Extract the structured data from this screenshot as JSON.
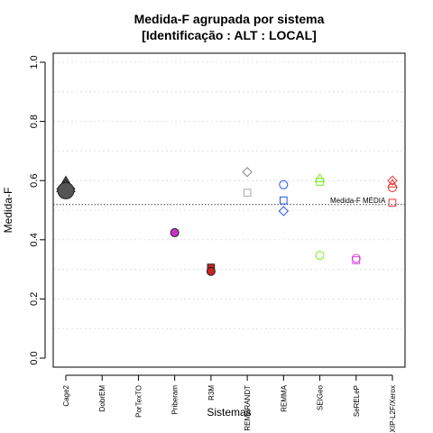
{
  "chart_data": {
    "type": "scatter",
    "title_line1": "Medida-F agrupada por sistema",
    "title_line2": "[Identificação : ALT : LOCAL]",
    "xlabel": "Sistemas",
    "ylabel": "Medida-F",
    "ylim": [
      0,
      1
    ],
    "yticks": [
      "0.0",
      "0.2",
      "0.4",
      "0.6",
      "0.8",
      "1.0"
    ],
    "grid": true,
    "categories": [
      "Cage2",
      "DobrEM",
      "PorTexTO",
      "Priberam",
      "R3M",
      "REMBRANDT",
      "REMMA",
      "SEIGeo",
      "SeRELeP",
      "XIP-L2F/Xerox"
    ],
    "reference_line": {
      "label": "Medida-F MÉDIA",
      "value": 0.519
    },
    "points": [
      {
        "category": "Cage2",
        "value": 0.584,
        "shape": "triangle",
        "color": "#555555",
        "filled": true,
        "big": true
      },
      {
        "category": "Cage2",
        "value": 0.572,
        "shape": "diamond",
        "color": "#555555",
        "filled": true,
        "big": true
      },
      {
        "category": "Cage2",
        "value": 0.566,
        "shape": "circle",
        "color": "#555555",
        "filled": true,
        "big": true
      },
      {
        "category": "Priberam",
        "value": 0.424,
        "shape": "circle",
        "color": "#cc33cc",
        "filled": true
      },
      {
        "category": "R3M",
        "value": 0.306,
        "shape": "square",
        "color": "#cc2222",
        "filled": true
      },
      {
        "category": "R3M",
        "value": 0.293,
        "shape": "circle",
        "color": "#cc2222",
        "filled": true
      },
      {
        "category": "REMBRANDT",
        "value": 0.629,
        "shape": "diamond",
        "color": "#888888",
        "filled": false
      },
      {
        "category": "REMBRANDT",
        "value": 0.559,
        "shape": "square",
        "color": "#aaaaaa",
        "filled": false
      },
      {
        "category": "REMMA",
        "value": 0.586,
        "shape": "circle",
        "color": "#2255ee",
        "filled": false
      },
      {
        "category": "REMMA",
        "value": 0.533,
        "shape": "square",
        "color": "#2255ee",
        "filled": false
      },
      {
        "category": "REMMA",
        "value": 0.497,
        "shape": "diamond",
        "color": "#2255ee",
        "filled": false
      },
      {
        "category": "SEIGeo",
        "value": 0.607,
        "shape": "triangle",
        "color": "#77ee22",
        "filled": false
      },
      {
        "category": "SEIGeo",
        "value": 0.596,
        "shape": "square",
        "color": "#77ee22",
        "filled": false
      },
      {
        "category": "SEIGeo",
        "value": 0.347,
        "shape": "circle",
        "color": "#77ee22",
        "filled": false
      },
      {
        "category": "SeRELeP",
        "value": 0.337,
        "shape": "circle",
        "color": "#dd44dd",
        "filled": false
      },
      {
        "category": "SeRELeP",
        "value": 0.331,
        "shape": "square",
        "color": "#dd44dd",
        "filled": false
      },
      {
        "category": "XIP-L2F/Xerox",
        "value": 0.6,
        "shape": "diamond",
        "color": "#ee3333",
        "filled": false
      },
      {
        "category": "XIP-L2F/Xerox",
        "value": 0.589,
        "shape": "triangle",
        "color": "#ee3333",
        "filled": false
      },
      {
        "category": "XIP-L2F/Xerox",
        "value": 0.576,
        "shape": "circle",
        "color": "#ee3333",
        "filled": false
      },
      {
        "category": "XIP-L2F/Xerox",
        "value": 0.525,
        "shape": "square",
        "color": "#ee3333",
        "filled": false
      }
    ]
  }
}
